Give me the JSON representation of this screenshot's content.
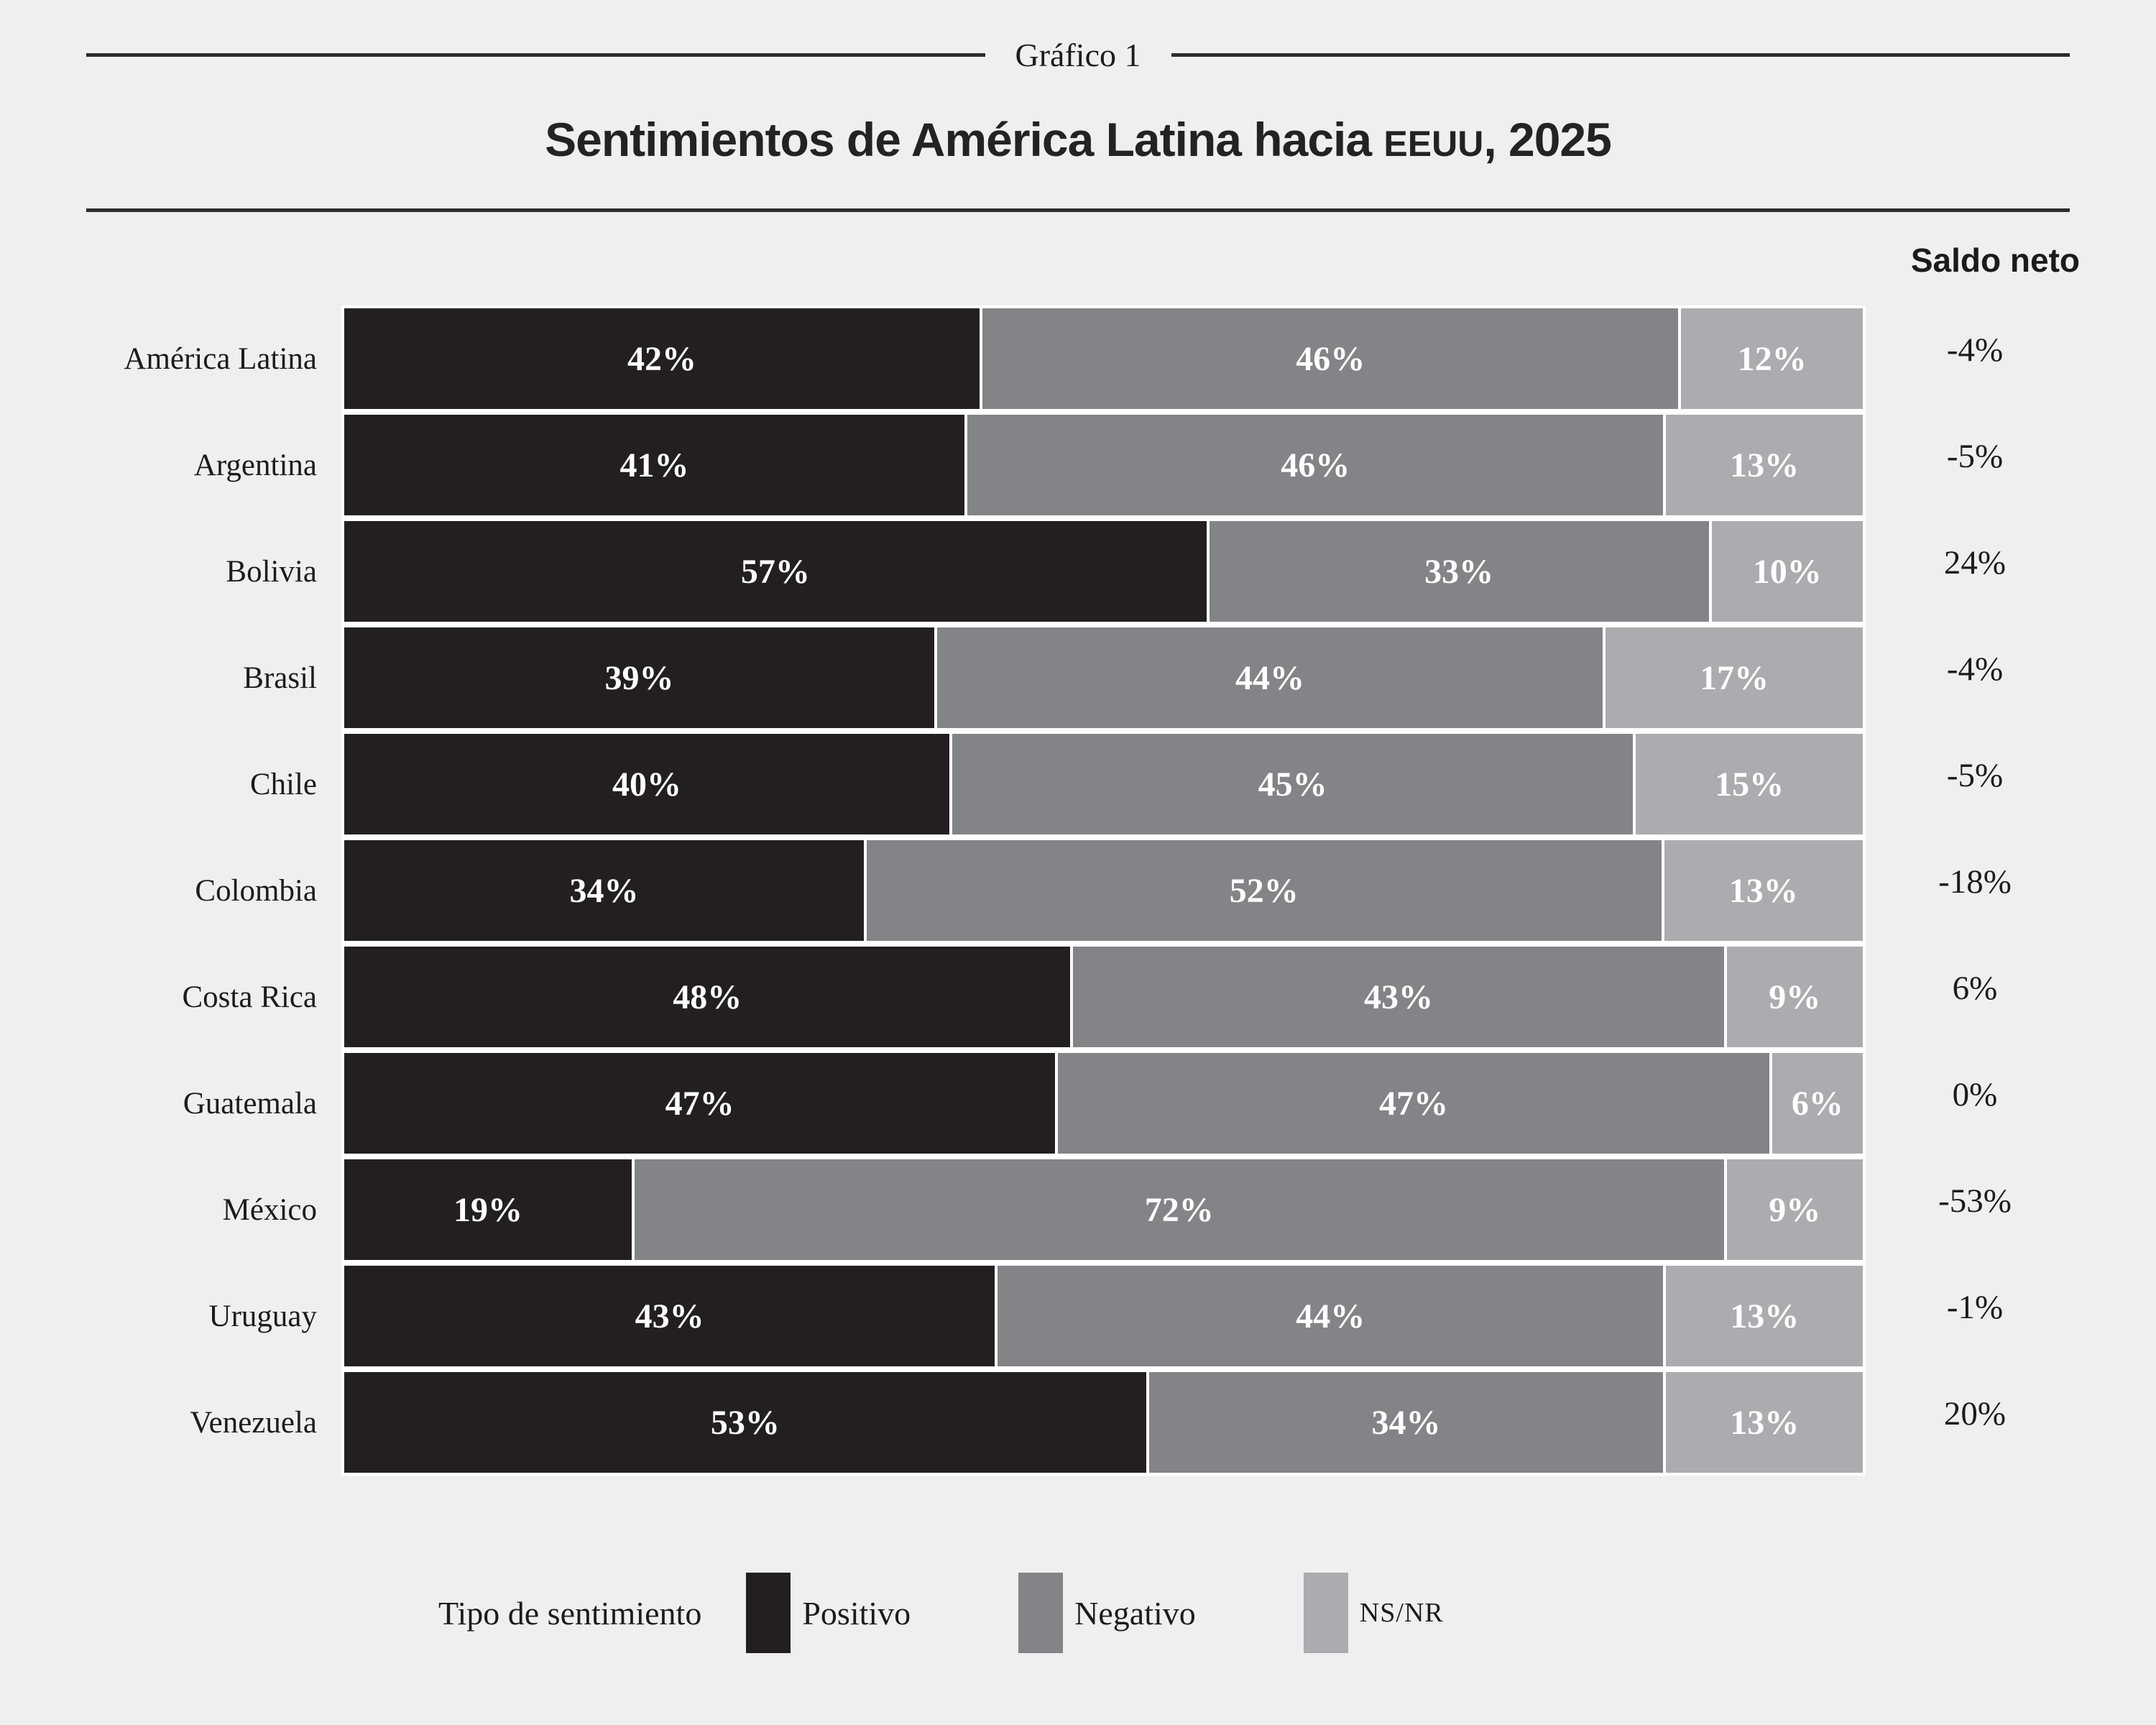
{
  "header": {
    "kicker": "Gráfico 1",
    "title_pre": "Sentimientos de América Latina hacia ",
    "title_smallcaps": "EEUU",
    "title_post": ", 2025"
  },
  "chart": {
    "net_label": "Saldo neto",
    "legend_title": "Tipo de sentimiento",
    "rows": [
      {
        "label": "América Latina",
        "values": [
          "42%",
          "46%",
          "12%"
        ],
        "numeric": [
          42,
          46,
          12
        ],
        "saldo": "-4%"
      },
      {
        "label": "Argentina",
        "values": [
          "41%",
          "46%",
          "13%"
        ],
        "numeric": [
          41,
          46,
          13
        ],
        "saldo": "-5%"
      },
      {
        "label": "Bolivia",
        "values": [
          "57%",
          "33%",
          "10%"
        ],
        "numeric": [
          57,
          33,
          10
        ],
        "saldo": "24%"
      },
      {
        "label": "Brasil",
        "values": [
          "39%",
          "44%",
          "17%"
        ],
        "numeric": [
          39,
          44,
          17
        ],
        "saldo": "-4%"
      },
      {
        "label": "Chile",
        "values": [
          "40%",
          "45%",
          "15%"
        ],
        "numeric": [
          40,
          45,
          15
        ],
        "saldo": "-5%"
      },
      {
        "label": "Colombia",
        "values": [
          "34%",
          "52%",
          "13%"
        ],
        "numeric": [
          34,
          52,
          13
        ],
        "saldo": "-18%"
      },
      {
        "label": "Costa Rica",
        "values": [
          "48%",
          "43%",
          "9%"
        ],
        "numeric": [
          48,
          43,
          9
        ],
        "saldo": "6%"
      },
      {
        "label": "Guatemala",
        "values": [
          "47%",
          "47%",
          "6%"
        ],
        "numeric": [
          47,
          47,
          6
        ],
        "saldo": "0%"
      },
      {
        "label": "México",
        "values": [
          "19%",
          "72%",
          "9%"
        ],
        "numeric": [
          19,
          72,
          9
        ],
        "saldo": "-53%"
      },
      {
        "label": "Uruguay",
        "values": [
          "43%",
          "44%",
          "13%"
        ],
        "numeric": [
          43,
          44,
          13
        ],
        "saldo": "-1%"
      },
      {
        "label": "Venezuela",
        "values": [
          "53%",
          "34%",
          "13%"
        ],
        "numeric": [
          53,
          34,
          13
        ],
        "saldo": "20%"
      }
    ]
  },
  "chart_data": {
    "type": "bar",
    "subtype": "horizontal-stacked-100",
    "title": "Sentimientos de América Latina hacia EEUU, 2025",
    "kicker": "Gráfico 1",
    "net_column_label": "Saldo neto",
    "legend_title": "Tipo de sentimiento",
    "legend_position": "bottom",
    "categories": [
      "América Latina",
      "Argentina",
      "Bolivia",
      "Brasil",
      "Chile",
      "Colombia",
      "Costa Rica",
      "Guatemala",
      "México",
      "Uruguay",
      "Venezuela"
    ],
    "series": [
      {
        "name": "Positivo",
        "color": "#231f20",
        "values": [
          42,
          41,
          57,
          39,
          40,
          34,
          48,
          47,
          19,
          43,
          53
        ]
      },
      {
        "name": "Negativo",
        "color": "#828487",
        "values": [
          46,
          46,
          33,
          44,
          45,
          52,
          43,
          47,
          72,
          44,
          34
        ]
      },
      {
        "name": "NS/NR",
        "color": "#aaacaf",
        "values": [
          12,
          13,
          10,
          17,
          15,
          13,
          9,
          6,
          9,
          13,
          13
        ]
      }
    ],
    "net_balance": [
      "-4%",
      "-5%",
      "24%",
      "-4%",
      "-5%",
      "-18%",
      "6%",
      "0%",
      "-53%",
      "-1%",
      "20%"
    ],
    "value_labels_shown": true,
    "xlim": [
      0,
      100
    ],
    "grid": false,
    "colors": {
      "positivo": "#231f20",
      "negativo": "#828487",
      "nsnr": "#aaacaf",
      "background": "#f0efef",
      "separator": "#ffffff",
      "text": "#1e1b1c"
    }
  }
}
